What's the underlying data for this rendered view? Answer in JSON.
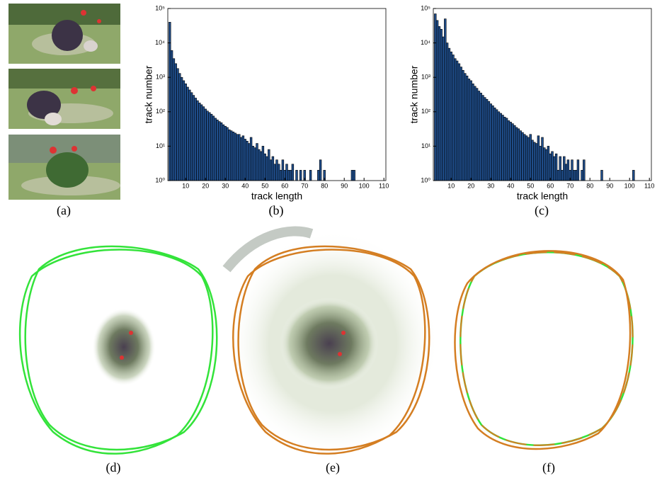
{
  "chart_data": [
    {
      "type": "bar",
      "x_label": "track length",
      "y_label": "track number",
      "x": [
        2,
        3,
        4,
        5,
        6,
        7,
        8,
        9,
        10,
        11,
        12,
        13,
        14,
        15,
        16,
        17,
        18,
        19,
        20,
        21,
        22,
        23,
        24,
        25,
        26,
        27,
        28,
        29,
        30,
        31,
        32,
        33,
        34,
        35,
        36,
        37,
        38,
        39,
        40,
        41,
        42,
        43,
        44,
        45,
        46,
        47,
        48,
        49,
        50,
        51,
        52,
        53,
        54,
        55,
        56,
        57,
        58,
        59,
        60,
        61,
        62,
        63,
        64,
        65,
        66,
        67,
        68,
        69,
        70,
        71,
        73,
        74,
        76,
        77,
        78,
        79,
        80,
        83,
        85,
        89,
        94,
        95
      ],
      "values": [
        40000,
        6000,
        3500,
        2500,
        1800,
        1300,
        1000,
        800,
        650,
        520,
        430,
        360,
        300,
        250,
        210,
        180,
        160,
        140,
        120,
        105,
        95,
        85,
        75,
        65,
        58,
        52,
        48,
        42,
        38,
        35,
        30,
        28,
        26,
        24,
        22,
        22,
        18,
        20,
        16,
        14,
        12,
        18,
        10,
        9,
        12,
        8,
        7,
        10,
        6,
        5,
        8,
        4,
        5,
        3,
        4,
        3,
        2,
        4,
        2,
        3,
        2,
        2,
        3,
        1,
        2,
        1,
        2,
        1,
        2,
        1,
        2,
        1,
        1,
        2,
        4,
        1,
        2,
        1,
        1,
        1,
        2,
        2
      ],
      "color": "#1f4e8c",
      "log_y": true,
      "xlim": [
        1,
        111
      ],
      "xticks": [
        10,
        20,
        30,
        40,
        50,
        60,
        70,
        80,
        90,
        100,
        110
      ],
      "ylim": [
        1,
        100000
      ],
      "yticks": [
        {
          "value": 1,
          "label": "10⁰"
        },
        {
          "value": 10,
          "label": "10¹"
        },
        {
          "value": 100,
          "label": "10²"
        },
        {
          "value": 1000,
          "label": "10³"
        },
        {
          "value": 10000,
          "label": "10⁴"
        },
        {
          "value": 100000,
          "label": "10⁵"
        }
      ]
    },
    {
      "type": "bar",
      "x_label": "track length",
      "y_label": "track number",
      "x": [
        2,
        3,
        4,
        5,
        6,
        7,
        8,
        9,
        10,
        11,
        12,
        13,
        14,
        15,
        16,
        17,
        18,
        19,
        20,
        21,
        22,
        23,
        24,
        25,
        26,
        27,
        28,
        29,
        30,
        31,
        32,
        33,
        34,
        35,
        36,
        37,
        38,
        39,
        40,
        41,
        42,
        43,
        44,
        45,
        46,
        47,
        48,
        49,
        50,
        51,
        52,
        53,
        54,
        55,
        56,
        57,
        58,
        59,
        60,
        61,
        62,
        63,
        64,
        65,
        66,
        67,
        68,
        69,
        70,
        71,
        72,
        73,
        74,
        75,
        76,
        77,
        86,
        102
      ],
      "values": [
        70000,
        45000,
        30000,
        25000,
        15000,
        50000,
        10000,
        7000,
        5500,
        4500,
        3500,
        3000,
        2500,
        2000,
        1600,
        1300,
        1100,
        900,
        800,
        650,
        550,
        480,
        400,
        350,
        300,
        260,
        230,
        200,
        170,
        150,
        130,
        115,
        100,
        90,
        80,
        70,
        65,
        55,
        50,
        45,
        40,
        35,
        32,
        28,
        25,
        22,
        20,
        18,
        22,
        15,
        13,
        12,
        20,
        10,
        18,
        9,
        8,
        10,
        6,
        7,
        5,
        6,
        2,
        5,
        2,
        5,
        3,
        4,
        2,
        4,
        2,
        2,
        4,
        1,
        2,
        4,
        2,
        2
      ],
      "color": "#1f4e8c",
      "log_y": true,
      "xlim": [
        1,
        111
      ],
      "xticks": [
        10,
        20,
        30,
        40,
        50,
        60,
        70,
        80,
        90,
        100,
        110
      ],
      "ylim": [
        1,
        100000
      ],
      "yticks": [
        {
          "value": 1,
          "label": "10⁰"
        },
        {
          "value": 10,
          "label": "10¹"
        },
        {
          "value": 100,
          "label": "10²"
        },
        {
          "value": 1000,
          "label": "10³"
        },
        {
          "value": 10000,
          "label": "10⁴"
        },
        {
          "value": 100000,
          "label": "10⁵"
        }
      ]
    }
  ],
  "captions": [
    "(a)",
    "(b)",
    "(c)",
    "(d)",
    "(e)",
    "(f)"
  ]
}
